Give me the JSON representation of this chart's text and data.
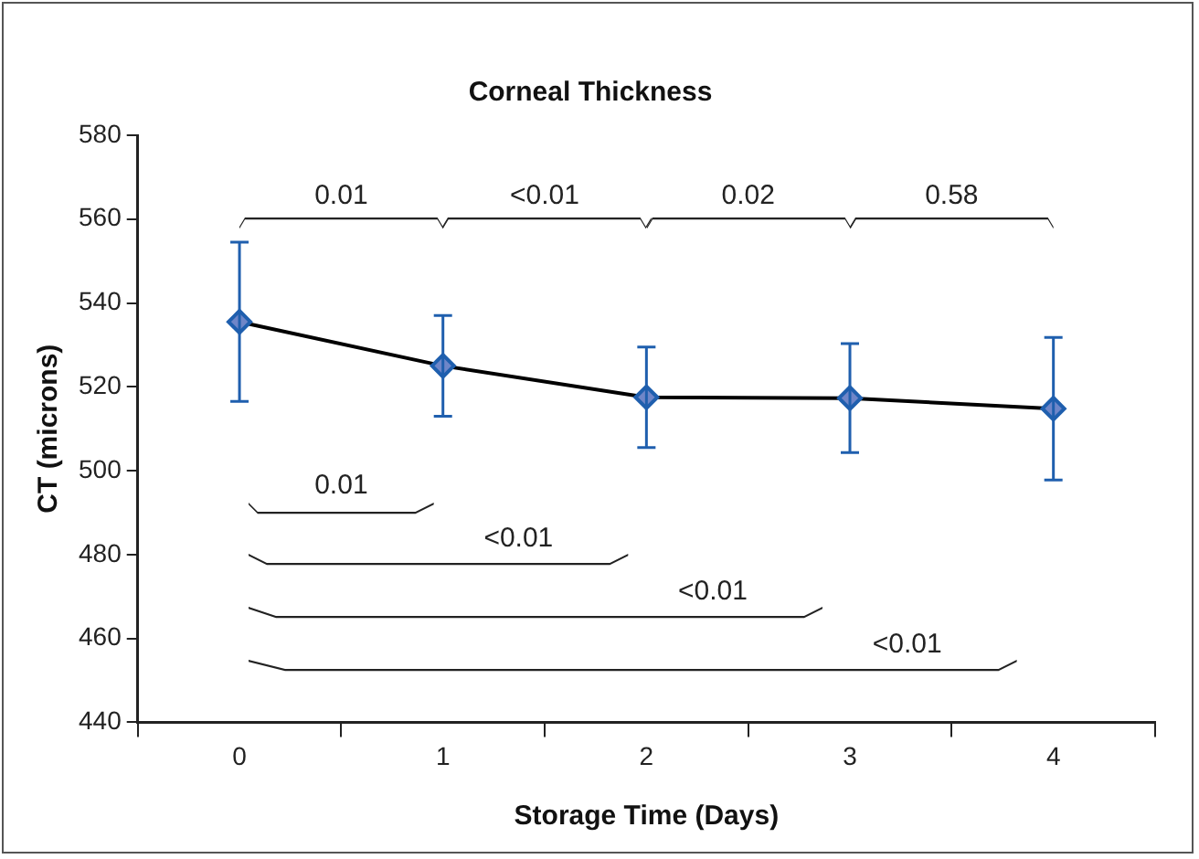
{
  "chart_data": {
    "type": "line",
    "title": "Corneal Thickness",
    "xlabel": "Storage Time (Days)",
    "ylabel": "CT (microns)",
    "categories": [
      "0",
      "1",
      "2",
      "3",
      "4"
    ],
    "series": [
      {
        "color": "#1f5fae",
        "values": [
          535.5,
          525,
          517.5,
          517.3,
          514.8
        ],
        "errors": [
          19,
          12,
          12,
          13,
          17
        ]
      }
    ],
    "ylim": [
      440,
      580
    ],
    "yticks": [
      440,
      460,
      480,
      500,
      520,
      540,
      560,
      580
    ],
    "marker": "diamond",
    "grid": false,
    "legend": false,
    "annotations": [
      "0.01",
      "<0.01",
      "0.02",
      "0.58",
      "0.01",
      "<0.01",
      "<0.01",
      "<0.01"
    ]
  }
}
